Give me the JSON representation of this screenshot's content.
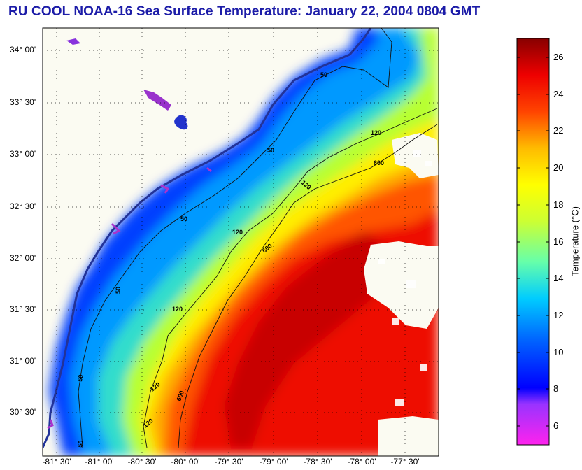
{
  "title": "RU COOL  NOAA-16  Sea Surface Temperature:  January 22, 2004 0804 GMT",
  "lat_labels": [
    "34° 00'",
    "33° 30'",
    "33° 00'",
    "32° 30'",
    "32° 00'",
    "31° 30'",
    "31° 00'",
    "30° 30'"
  ],
  "lon_labels": [
    "-81° 30'",
    "-81° 00'",
    "-80° 30'",
    "-80° 00'",
    "-79° 30'",
    "-79° 00'",
    "-78° 30'",
    "-78° 00'",
    "-77° 30'"
  ],
  "colorbar": {
    "title": "Temperature (°C)",
    "ticks": [
      "26",
      "24",
      "22",
      "20",
      "18",
      "16",
      "14",
      "12",
      "10",
      "8",
      "6"
    ],
    "min": 5,
    "max": 27,
    "colors": {
      "5": "#ff00ff",
      "7.5": "#6633ff",
      "8.5": "#0000ff",
      "11": "#0066ff",
      "13": "#00ccff",
      "15": "#66ff99",
      "17": "#ccff33",
      "19": "#ffff00",
      "21": "#ffcc00",
      "23": "#ff5500",
      "25": "#ee0000",
      "27": "#880000"
    }
  },
  "isobaths": [
    "50",
    "120",
    "600"
  ],
  "contour_labels": [
    "50",
    "50",
    "50",
    "50",
    "50",
    "50",
    "120",
    "120",
    "120",
    "120",
    "120",
    "120",
    "600",
    "600",
    "600"
  ]
}
